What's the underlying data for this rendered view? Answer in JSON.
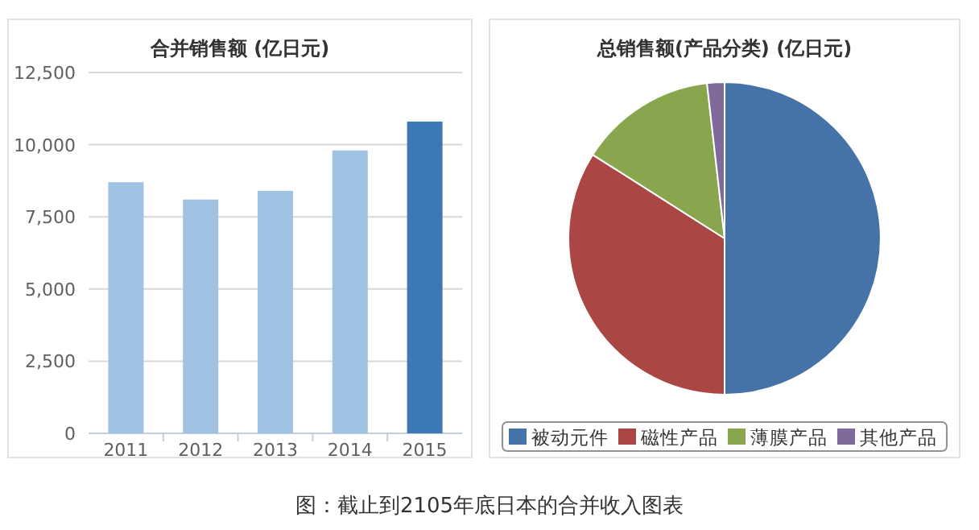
{
  "chart_data": [
    {
      "type": "bar",
      "title": "合并销售额 (亿日元)",
      "categories": [
        "2011",
        "2012",
        "2013",
        "2014",
        "2015"
      ],
      "values": [
        8700,
        8100,
        8400,
        9800,
        10800
      ],
      "colors": [
        "#a0c3e3",
        "#a0c3e3",
        "#a0c3e3",
        "#a0c3e3",
        "#3d78b6"
      ],
      "ylim": [
        0,
        12500
      ],
      "yticks": [
        0,
        {
          "value": 2500,
          "label": "2,500"
        },
        {
          "value": 5000,
          "label": "5,000"
        },
        {
          "value": 7500,
          "label": "7,500"
        },
        {
          "value": 10000,
          "label": "10,000"
        },
        {
          "value": 12500,
          "label": "12,500"
        }
      ],
      "grid": "y"
    },
    {
      "type": "pie",
      "title": "总销售额(产品分类) (亿日元)",
      "categories": [
        "被动元件",
        "磁性产品",
        "薄膜产品",
        "其他产品"
      ],
      "values": [
        50,
        34,
        14.2,
        1.8
      ],
      "colors": [
        "#4572a7",
        "#aa4643",
        "#89a54e",
        "#80699b"
      ],
      "legend": "bottom",
      "annotations": [
        "图：截止到2105年底日本的合并收入图表"
      ]
    }
  ]
}
